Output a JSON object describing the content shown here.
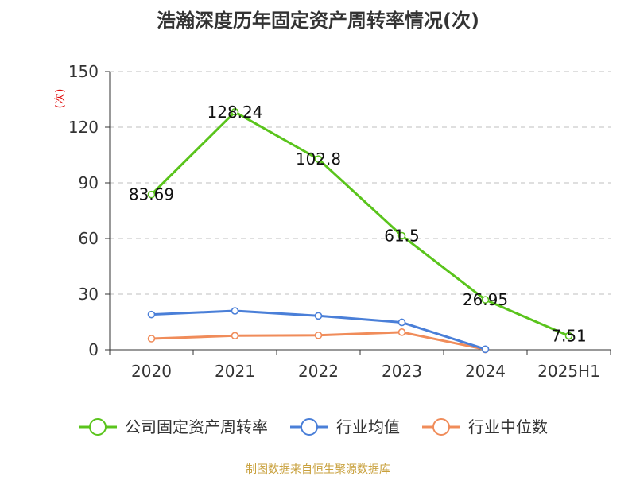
{
  "chart_data": {
    "type": "line",
    "title": "浩瀚深度历年固定资产周转率情况(次)",
    "ylabel": "(次)",
    "xlabel": "",
    "categories": [
      "2020",
      "2021",
      "2022",
      "2023",
      "2024",
      "2025H1"
    ],
    "ylim": [
      0,
      150
    ],
    "yticks": [
      0,
      30,
      60,
      90,
      120,
      150
    ],
    "grid": true,
    "legend_position": "bottom",
    "series": [
      {
        "name": "公司固定资产周转率",
        "color": "#5ac41c",
        "values": [
          83.69,
          128.24,
          102.8,
          61.5,
          26.95,
          7.51
        ],
        "labels": [
          "83.69",
          "128.24",
          "102.8",
          "61.5",
          "26.95",
          "7.51"
        ]
      },
      {
        "name": "行业均值",
        "color": "#4a7fd8",
        "values": [
          19,
          21,
          18.3,
          14.8,
          0.3,
          null
        ]
      },
      {
        "name": "行业中位数",
        "color": "#f08c5a",
        "values": [
          6,
          7.6,
          7.8,
          9.5,
          0.2,
          null
        ]
      }
    ]
  },
  "footer": {
    "source": "制图数据来自恒生聚源数据库"
  }
}
